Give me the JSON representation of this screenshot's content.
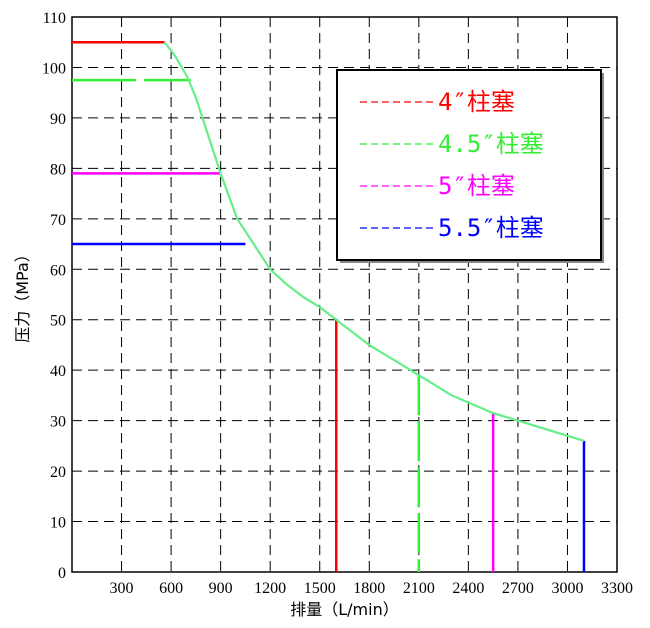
{
  "chart_data": {
    "type": "line",
    "title": "",
    "xlabel": "排量（L/min）",
    "ylabel": "压力（MPa）",
    "xlim": [
      0,
      3300
    ],
    "ylim": [
      0,
      110
    ],
    "xticks": [
      300,
      600,
      900,
      1200,
      1500,
      1800,
      2100,
      2400,
      2700,
      3000,
      3300
    ],
    "yticks": [
      0,
      10,
      20,
      30,
      40,
      50,
      60,
      70,
      80,
      90,
      100,
      110
    ],
    "grid": true,
    "grid_style": "dashed",
    "legend_position": "top-right",
    "series": [
      {
        "name": "4″柱塞",
        "color": "#ff0000",
        "dash": "solid",
        "points": [
          [
            0,
            105
          ],
          [
            560,
            105
          ],
          [
            700,
            98
          ],
          [
            800,
            89
          ],
          [
            900,
            79
          ],
          [
            1000,
            70
          ],
          [
            1100,
            65
          ],
          [
            1200,
            60
          ],
          [
            1400,
            54.5
          ],
          [
            1600,
            50
          ],
          [
            1600,
            0
          ]
        ]
      },
      {
        "name": "4.5″柱塞",
        "color": "#33ee33",
        "dash": "long",
        "points": [
          [
            0,
            97.5
          ],
          [
            720,
            97.5
          ],
          [
            2100,
            39
          ],
          [
            2100,
            0
          ]
        ]
      },
      {
        "name": "5″柱塞",
        "color": "#ff00ff",
        "dash": "solid",
        "points": [
          [
            0,
            79
          ],
          [
            900,
            79
          ],
          [
            2550,
            31.5
          ],
          [
            2550,
            0
          ]
        ]
      },
      {
        "name": "5.5″柱塞",
        "color": "#0000ff",
        "dash": "solid",
        "points": [
          [
            0,
            65
          ],
          [
            1050,
            65
          ],
          [
            3100,
            26
          ],
          [
            3100,
            0
          ]
        ]
      }
    ],
    "envelope": {
      "color": "#66ee88",
      "points": [
        [
          560,
          105
        ],
        [
          620,
          102.5
        ],
        [
          700,
          98
        ],
        [
          750,
          94
        ],
        [
          800,
          89
        ],
        [
          850,
          84
        ],
        [
          900,
          79
        ],
        [
          1000,
          70
        ],
        [
          1100,
          65
        ],
        [
          1200,
          60
        ],
        [
          1300,
          57
        ],
        [
          1400,
          54.5
        ],
        [
          1500,
          52.5
        ],
        [
          1600,
          50
        ],
        [
          1800,
          45
        ],
        [
          2000,
          41
        ],
        [
          2100,
          39
        ],
        [
          2300,
          35
        ],
        [
          2550,
          31.5
        ],
        [
          2800,
          29
        ],
        [
          3000,
          27
        ],
        [
          3100,
          26
        ]
      ]
    }
  }
}
